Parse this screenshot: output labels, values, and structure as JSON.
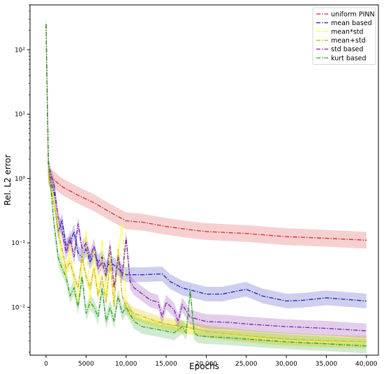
{
  "chart_data": {
    "type": "line",
    "xlabel": "Epochs",
    "ylabel": "Rel. L2 error",
    "ylog": true,
    "xlim": [
      -2000,
      41500
    ],
    "ylim": [
      0.0018,
      500
    ],
    "xticks": [
      0,
      5000,
      10000,
      15000,
      20000,
      25000,
      30000,
      35000,
      40000
    ],
    "xtick_labels": [
      "0",
      "5000",
      "10,000",
      "15,000",
      "20,000",
      "25,000",
      "30,000",
      "35,000",
      "40,000"
    ],
    "yticks": [
      0.01,
      0.1,
      1,
      10,
      100
    ],
    "ytick_labels": [
      "10⁻²",
      "10⁻¹",
      "10⁰",
      "10¹",
      "10²"
    ],
    "legend_position": "top-right",
    "grid": false,
    "series": [
      {
        "name": "uniform PINN",
        "color": "#d62728",
        "band_factor": 1.35,
        "x": [
          0,
          300,
          1000,
          2000,
          4000,
          6000,
          8000,
          10000,
          12000,
          15000,
          18000,
          20000,
          25000,
          30000,
          35000,
          40000
        ],
        "values": [
          250,
          1.1,
          0.95,
          0.75,
          0.55,
          0.42,
          0.3,
          0.22,
          0.21,
          0.18,
          0.16,
          0.15,
          0.14,
          0.125,
          0.118,
          0.11
        ]
      },
      {
        "name": "mean based",
        "color": "#1f1fb4",
        "band_factor": 1.3,
        "x": [
          0,
          300,
          1000,
          1500,
          2000,
          2500,
          3000,
          3500,
          4000,
          4500,
          5000,
          5500,
          6000,
          6500,
          7000,
          7500,
          8000,
          8500,
          9000,
          9500,
          10000,
          12000,
          14500,
          15500,
          17000,
          20000,
          22000,
          24000,
          25000,
          27000,
          30000,
          32000,
          35000,
          40000
        ],
        "values": [
          250,
          1.1,
          0.6,
          0.15,
          0.22,
          0.09,
          0.1,
          0.15,
          0.07,
          0.06,
          0.08,
          0.05,
          0.07,
          0.05,
          0.06,
          0.04,
          0.05,
          0.045,
          0.04,
          0.035,
          0.032,
          0.032,
          0.033,
          0.025,
          0.02,
          0.016,
          0.016,
          0.018,
          0.019,
          0.015,
          0.0125,
          0.0128,
          0.014,
          0.0125
        ]
      },
      {
        "name": "mean*std",
        "color": "#ffff33",
        "band_factor": 1.25,
        "x": [
          0,
          300,
          1000,
          1500,
          2000,
          2500,
          3000,
          3500,
          4000,
          4500,
          5000,
          5500,
          6000,
          6500,
          7000,
          7500,
          8000,
          8500,
          9000,
          9500,
          10000,
          10500,
          12000,
          14000,
          16000,
          18000,
          20000,
          25000,
          30000,
          35000,
          40000
        ],
        "values": [
          250,
          1.1,
          0.5,
          0.2,
          0.05,
          0.03,
          0.1,
          0.02,
          0.012,
          0.05,
          0.15,
          0.01,
          0.08,
          0.015,
          0.11,
          0.015,
          0.08,
          0.012,
          0.07,
          0.2,
          0.012,
          0.008,
          0.0065,
          0.0055,
          0.005,
          0.0045,
          0.0042,
          0.0035,
          0.003,
          0.0029,
          0.0028
        ]
      },
      {
        "name": "mean+std",
        "color": "#d4b800",
        "band_factor": 1.25,
        "x": [
          0,
          300,
          1000,
          1500,
          2000,
          2500,
          3000,
          3500,
          4000,
          4500,
          5000,
          5500,
          6000,
          6500,
          7000,
          7500,
          8000,
          8500,
          9000,
          9500,
          10000,
          11000,
          13000,
          15000,
          18000,
          20000,
          25000,
          30000,
          35000,
          40000
        ],
        "values": [
          250,
          1.1,
          0.4,
          0.15,
          0.08,
          0.04,
          0.05,
          0.03,
          0.02,
          0.06,
          0.03,
          0.02,
          0.04,
          0.015,
          0.03,
          0.012,
          0.05,
          0.01,
          0.08,
          0.015,
          0.01,
          0.008,
          0.0065,
          0.0055,
          0.0048,
          0.0042,
          0.0036,
          0.0032,
          0.003,
          0.0029
        ]
      },
      {
        "name": "std based",
        "color": "#7b1fa2",
        "band_factor": 1.3,
        "x": [
          0,
          300,
          1000,
          1500,
          2000,
          2500,
          3000,
          3500,
          4000,
          4500,
          5000,
          5500,
          6000,
          6500,
          7000,
          7500,
          8000,
          8500,
          9000,
          9500,
          10000,
          10500,
          11000,
          13000,
          14000,
          14500,
          15000,
          16000,
          16500,
          17000,
          18000,
          19000,
          20000,
          23000,
          25000,
          30000,
          35000,
          40000
        ],
        "values": [
          250,
          1.6,
          0.8,
          0.25,
          0.15,
          0.07,
          0.12,
          0.06,
          0.2,
          0.08,
          0.1,
          0.06,
          0.09,
          0.04,
          0.05,
          0.03,
          0.09,
          0.02,
          0.06,
          0.03,
          0.12,
          0.025,
          0.02,
          0.013,
          0.012,
          0.007,
          0.012,
          0.009,
          0.006,
          0.011,
          0.007,
          0.0065,
          0.006,
          0.0058,
          0.0055,
          0.005,
          0.0047,
          0.0043
        ]
      },
      {
        "name": "kurt based",
        "color": "#2ca02c",
        "band_factor": 1.3,
        "x": [
          0,
          300,
          700,
          1000,
          1500,
          2000,
          2500,
          3000,
          3500,
          4000,
          4500,
          5000,
          5500,
          6000,
          6500,
          7000,
          7500,
          8000,
          8500,
          9000,
          9500,
          10000,
          11000,
          12000,
          14000,
          16000,
          17000,
          17500,
          18000,
          18500,
          19000,
          20000,
          22000,
          25000,
          30000,
          35000,
          40000
        ],
        "values": [
          250,
          2.0,
          0.5,
          0.2,
          0.06,
          0.04,
          0.03,
          0.015,
          0.02,
          0.01,
          0.03,
          0.008,
          0.012,
          0.01,
          0.007,
          0.02,
          0.006,
          0.01,
          0.006,
          0.015,
          0.008,
          0.01,
          0.006,
          0.005,
          0.0045,
          0.004,
          0.005,
          0.004,
          0.018,
          0.004,
          0.0036,
          0.0035,
          0.0034,
          0.0032,
          0.0029,
          0.0027,
          0.0025
        ]
      }
    ]
  }
}
